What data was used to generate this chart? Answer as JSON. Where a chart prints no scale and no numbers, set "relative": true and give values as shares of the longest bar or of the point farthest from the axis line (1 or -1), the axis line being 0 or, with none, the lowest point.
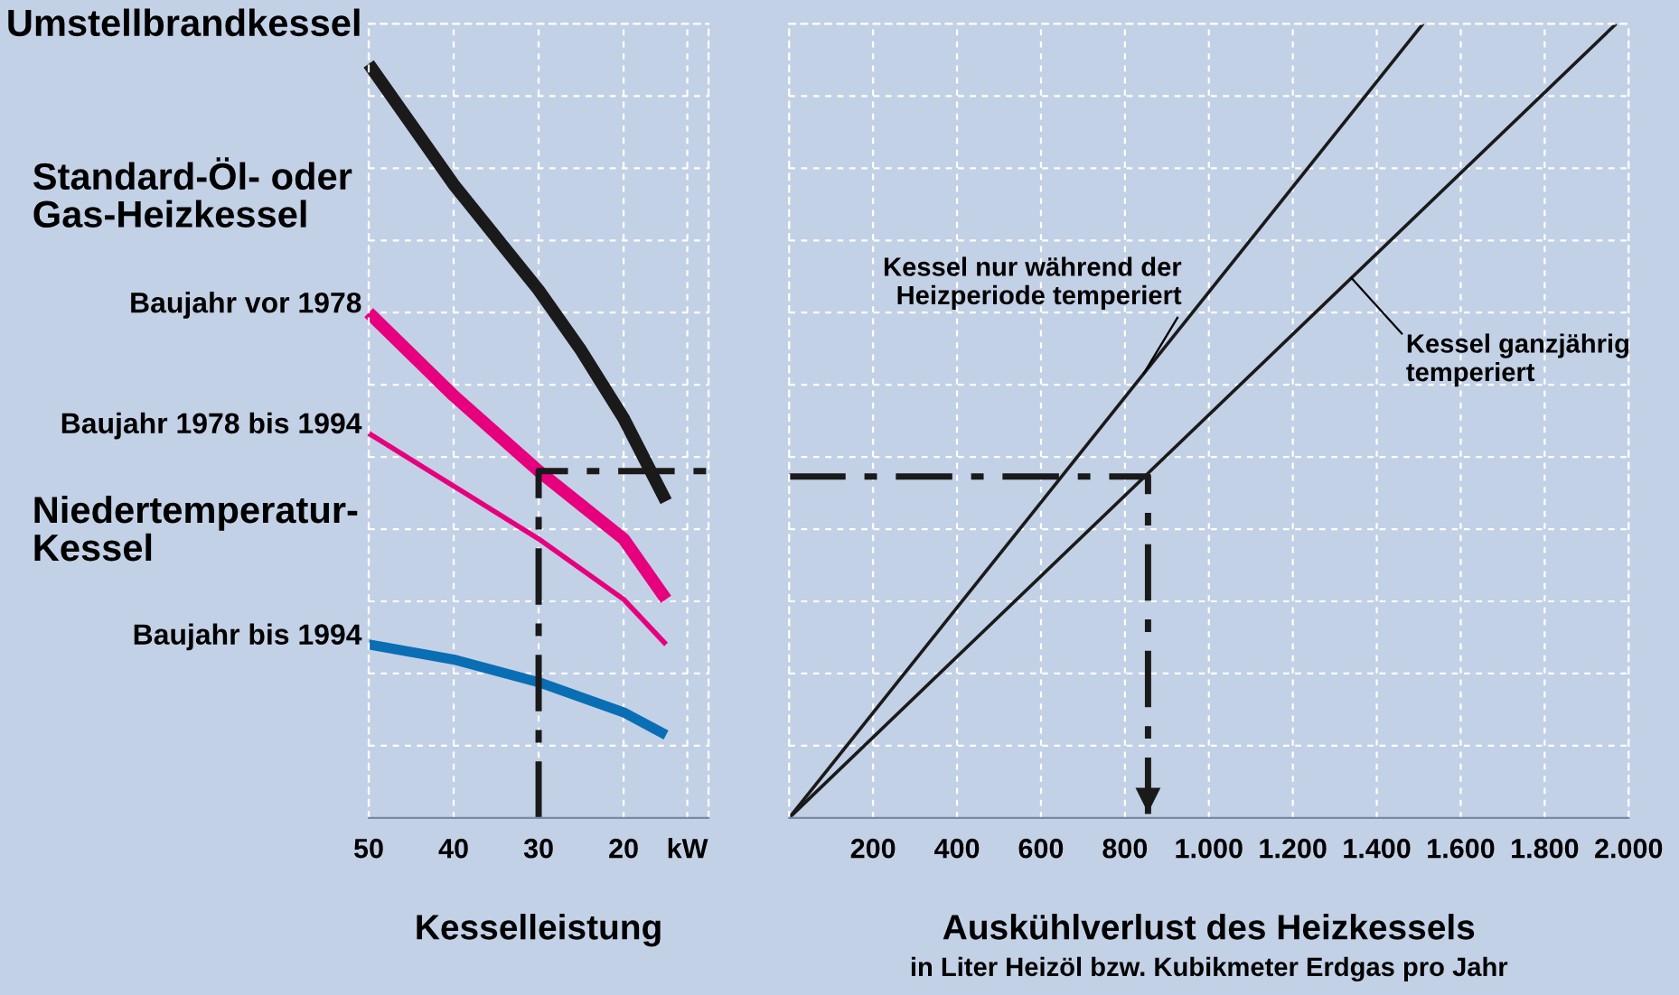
{
  "chart_data": [
    {
      "type": "line",
      "relative": true,
      "xlabel": "Kesselleistung",
      "xlim": [
        50,
        10
      ],
      "xticks": [
        50,
        40,
        30,
        20,
        {
          "value": 12.5,
          "label": "kW"
        }
      ],
      "grid": true,
      "tick_labels": "x",
      "legend": false,
      "annotations": [
        "Standard-Öl- oder\nGas-Heizkessel",
        "Niedertemperatur-\nKessel"
      ],
      "series": [
        {
          "name": "Umstellbrandkessel",
          "color": "#1a1a1a",
          "x": [
            50,
            45,
            40,
            35,
            30,
            25,
            20,
            15
          ],
          "values": [
            1,
            0.92,
            0.84,
            0.77,
            0.7,
            0.62,
            0.53,
            0.42
          ]
        },
        {
          "name": "Baujahr vor 1978",
          "color": "#e6007e",
          "x": [
            50,
            40,
            30,
            20,
            15
          ],
          "values": [
            0.67,
            0.56,
            0.46,
            0.37,
            0.29
          ]
        },
        {
          "name": "Baujahr 1978 bis 1994",
          "color": "#e6007e",
          "x": [
            50,
            40,
            30,
            20,
            15
          ],
          "values": [
            0.51,
            0.44,
            0.37,
            0.29,
            0.23
          ]
        },
        {
          "name": "Baujahr bis 1994",
          "color": "#0a6eb4",
          "x": [
            50,
            40,
            30,
            20,
            15
          ],
          "values": [
            0.23,
            0.21,
            0.18,
            0.14,
            0.11
          ]
        },
        {
          "color": "#1a1a1a",
          "line_style": "dashed",
          "x": [
            30,
            30,
            10
          ],
          "values": [
            0,
            0.46,
            0.46
          ]
        }
      ]
    },
    {
      "type": "line",
      "relative": true,
      "xlabel": "Auskühlverlust des Heizkessels",
      "xlim": [
        0,
        2000
      ],
      "xticks": [
        200,
        400,
        600,
        800,
        {
          "value": 1000,
          "label": "1.000"
        },
        {
          "value": 1200,
          "label": "1.200"
        },
        {
          "value": 1400,
          "label": "1.400"
        },
        {
          "value": 1600,
          "label": "1.600"
        },
        {
          "value": 1800,
          "label": "1.800"
        },
        {
          "value": 2000,
          "label": "2.000"
        }
      ],
      "grid": true,
      "tick_labels": "x",
      "legend": false,
      "annotations": [
        "in Liter Heizöl bzw. Kubikmeter Erdgas pro Jahr"
      ],
      "series": [
        {
          "name": "Kessel nur während der\nHeizperiode temperiert",
          "color": "#1a1a1a",
          "x": [
            0,
            1510
          ],
          "values": [
            0,
            1
          ]
        },
        {
          "name": "Kessel ganzjährig\ntemperiert",
          "color": "#1a1a1a",
          "x": [
            0,
            1970
          ],
          "values": [
            0,
            1
          ]
        },
        {
          "color": "#1a1a1a",
          "line_style": "dashed",
          "x": [
            0,
            855,
            855
          ],
          "values": [
            0.43,
            0.43,
            0
          ]
        }
      ]
    }
  ]
}
